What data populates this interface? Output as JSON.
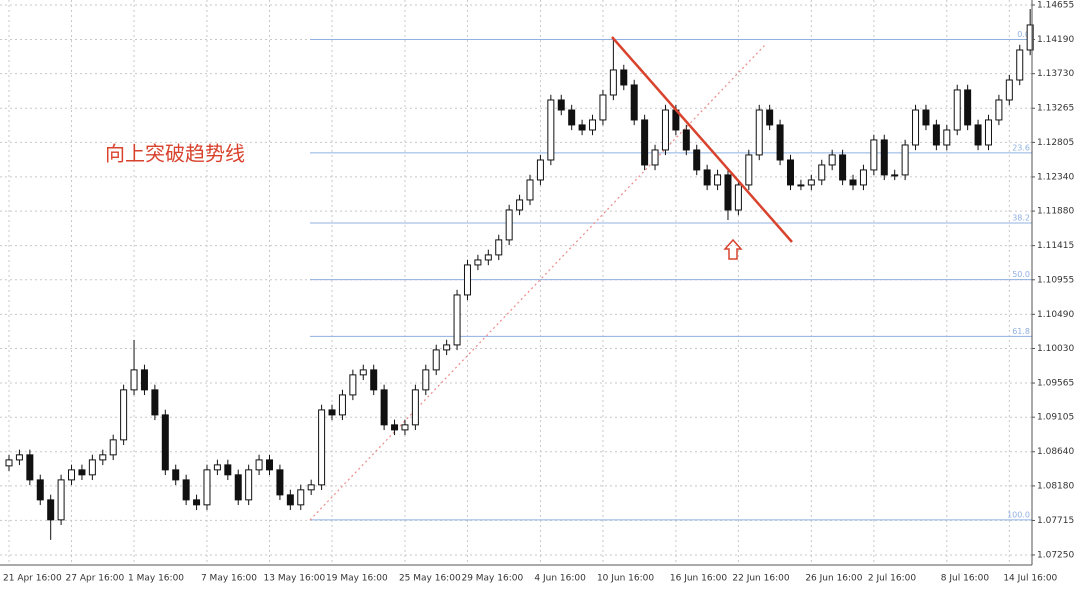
{
  "chart_data": {
    "type": "candlestick",
    "annotation": "向上突破趋势线",
    "categories": [
      "21 Apr 16:00",
      null,
      null,
      null,
      null,
      null,
      "27 Apr 16:00",
      null,
      null,
      null,
      null,
      null,
      "1 May 16:00",
      null,
      null,
      null,
      null,
      null,
      null,
      "7 May 16:00",
      null,
      null,
      null,
      null,
      null,
      "13 May 16:00",
      null,
      null,
      null,
      null,
      null,
      "19 May 16:00",
      null,
      null,
      null,
      null,
      null,
      null,
      "25 May 16:00",
      null,
      null,
      null,
      null,
      null,
      "29 May 16:00",
      null,
      null,
      null,
      null,
      null,
      null,
      "4 Jun 16:00",
      null,
      null,
      null,
      null,
      null,
      "10 Jun 16:00",
      null,
      null,
      null,
      null,
      null,
      null,
      "16 Jun 16:00",
      null,
      null,
      null,
      null,
      null,
      "22 Jun 16:00",
      null,
      null,
      null,
      null,
      null,
      null,
      "26 Jun 16:00",
      null,
      null,
      null,
      null,
      null,
      "2 Jul 16:00",
      null,
      null,
      null,
      null,
      null,
      null,
      "8 Jul 16:00",
      null,
      null,
      null,
      null,
      null,
      "14 Jul 16:00",
      null,
      null
    ],
    "open": [
      1.0845,
      1.0853,
      1.08598,
      1.08261,
      1.07992,
      1.07723,
      1.08261,
      1.08396,
      1.08329,
      1.0853,
      1.08598,
      1.088,
      1.09473,
      1.09742,
      1.09473,
      1.09136,
      1.08396,
      1.08261,
      1.07992,
      1.07925,
      1.08396,
      1.08463,
      1.08329,
      1.07992,
      1.08396,
      1.0853,
      1.08396,
      1.08059,
      1.07925,
      1.08127,
      1.08194,
      1.09203,
      1.09136,
      1.09405,
      1.09675,
      1.09742,
      1.09473,
      1.09002,
      1.08934,
      1.09002,
      1.09473,
      1.09742,
      1.10011,
      1.10078,
      1.10751,
      1.11155,
      1.11222,
      1.1129,
      1.11492,
      1.11895,
      1.1203,
      1.12299,
      1.12568,
      1.13376,
      1.13241,
      1.1304,
      1.12972,
      1.13107,
      1.13443,
      1.1378,
      1.13578,
      1.13107,
      1.12501,
      1.12703,
      1.13241,
      1.12972,
      1.12703,
      1.12434,
      1.12232,
      1.12367,
      1.11895,
      1.12232,
      1.12636,
      1.13241,
      1.1304,
      1.12568,
      1.12232,
      1.12232,
      1.12299,
      1.12501,
      1.12636,
      1.12299,
      1.12232,
      1.12434,
      1.12838,
      1.12367,
      1.12367,
      1.1277,
      1.13241,
      1.1304,
      1.1277,
      1.12972,
      1.13511,
      1.1304,
      1.1277,
      1.13107,
      1.13376,
      1.13645,
      1.14049
    ],
    "high": [
      1.086,
      1.08668,
      1.08668,
      1.08331,
      1.08062,
      1.08331,
      1.08466,
      1.08466,
      1.086,
      1.08668,
      1.0887,
      1.09543,
      1.10146,
      1.09812,
      1.09543,
      1.09206,
      1.08466,
      1.08331,
      1.08062,
      1.08466,
      1.08533,
      1.08533,
      1.08399,
      1.08466,
      1.086,
      1.086,
      1.08466,
      1.08129,
      1.08197,
      1.08264,
      1.09273,
      1.09273,
      1.09475,
      1.09745,
      1.09812,
      1.09812,
      1.09543,
      1.09072,
      1.09072,
      1.09543,
      1.09812,
      1.10081,
      1.10148,
      1.10821,
      1.11225,
      1.11292,
      1.1136,
      1.11562,
      1.11965,
      1.121,
      1.12369,
      1.12638,
      1.13446,
      1.13446,
      1.13311,
      1.1311,
      1.13177,
      1.13513,
      1.14211,
      1.1385,
      1.13648,
      1.13177,
      1.12773,
      1.13311,
      1.13311,
      1.13042,
      1.12773,
      1.12504,
      1.12437,
      1.12437,
      1.12302,
      1.12706,
      1.13311,
      1.13311,
      1.1311,
      1.12638,
      1.12302,
      1.12369,
      1.12571,
      1.12706,
      1.12706,
      1.12369,
      1.12504,
      1.12908,
      1.12908,
      1.12437,
      1.1284,
      1.13311,
      1.13311,
      1.1311,
      1.13042,
      1.13581,
      1.13581,
      1.1311,
      1.13177,
      1.13446,
      1.13715,
      1.14119,
      1.146
    ],
    "low": [
      1.0838,
      1.0846,
      1.08191,
      1.07922,
      1.07453,
      1.07653,
      1.08191,
      1.08259,
      1.08259,
      1.0846,
      1.08528,
      1.0873,
      1.09403,
      1.09403,
      1.09066,
      1.08326,
      1.08191,
      1.07922,
      1.07855,
      1.07855,
      1.08326,
      1.08259,
      1.07922,
      1.07922,
      1.08326,
      1.08326,
      1.07989,
      1.07855,
      1.07855,
      1.08057,
      1.08124,
      1.09066,
      1.09066,
      1.09335,
      1.09605,
      1.09403,
      1.08932,
      1.08864,
      1.08864,
      1.08932,
      1.09403,
      1.09672,
      1.09941,
      1.10008,
      1.10681,
      1.11085,
      1.11152,
      1.1122,
      1.11422,
      1.11825,
      1.1196,
      1.12229,
      1.12498,
      1.13171,
      1.1297,
      1.12902,
      1.12902,
      1.13037,
      1.13373,
      1.13508,
      1.13037,
      1.12431,
      1.12431,
      1.12633,
      1.12902,
      1.12633,
      1.12364,
      1.12162,
      1.12162,
      1.1176,
      1.11825,
      1.12162,
      1.12566,
      1.1297,
      1.12498,
      1.12162,
      1.12162,
      1.12162,
      1.12229,
      1.12431,
      1.12229,
      1.12162,
      1.12162,
      1.12364,
      1.12297,
      1.12297,
      1.12297,
      1.127,
      1.1297,
      1.127,
      1.127,
      1.12902,
      1.1297,
      1.127,
      1.127,
      1.13037,
      1.13306,
      1.13575,
      1.13979
    ],
    "close": [
      1.0853,
      1.08598,
      1.08261,
      1.07992,
      1.07723,
      1.08261,
      1.08396,
      1.08329,
      1.0853,
      1.08598,
      1.088,
      1.09473,
      1.09742,
      1.09473,
      1.09136,
      1.08396,
      1.08261,
      1.07992,
      1.07925,
      1.08396,
      1.08463,
      1.08329,
      1.07992,
      1.08396,
      1.0853,
      1.08396,
      1.08059,
      1.07925,
      1.08127,
      1.08194,
      1.09203,
      1.09136,
      1.09405,
      1.09675,
      1.09742,
      1.09473,
      1.09002,
      1.08934,
      1.09002,
      1.09473,
      1.09742,
      1.10011,
      1.10078,
      1.10751,
      1.11155,
      1.11222,
      1.1129,
      1.11492,
      1.11895,
      1.1203,
      1.12299,
      1.12568,
      1.13376,
      1.13241,
      1.1304,
      1.12972,
      1.13107,
      1.13443,
      1.1378,
      1.13578,
      1.13107,
      1.12501,
      1.12703,
      1.13241,
      1.12972,
      1.12703,
      1.12434,
      1.12232,
      1.12367,
      1.11895,
      1.12232,
      1.12636,
      1.13241,
      1.1304,
      1.12568,
      1.12232,
      1.12232,
      1.12299,
      1.12501,
      1.12636,
      1.12299,
      1.12232,
      1.12434,
      1.12838,
      1.12367,
      1.12367,
      1.1277,
      1.13241,
      1.1304,
      1.1277,
      1.12972,
      1.13511,
      1.1304,
      1.1277,
      1.13107,
      1.13376,
      1.13645,
      1.14049,
      1.14386
    ],
    "ylim": [
      1.07115,
      1.14722
    ],
    "yticks": [
      {
        "value": 1.14655,
        "label": "1.14655"
      },
      {
        "value": 1.1419,
        "label": "1.14190"
      },
      {
        "value": 1.1373,
        "label": "1.13730"
      },
      {
        "value": 1.13265,
        "label": "1.13265"
      },
      {
        "value": 1.12805,
        "label": "1.12805"
      },
      {
        "value": 1.1234,
        "label": "1.12340"
      },
      {
        "value": 1.1188,
        "label": "1.11880"
      },
      {
        "value": 1.11415,
        "label": "1.11415"
      },
      {
        "value": 1.10955,
        "label": "1.10955"
      },
      {
        "value": 1.1049,
        "label": "1.10490"
      },
      {
        "value": 1.1003,
        "label": "1.10030"
      },
      {
        "value": 1.09565,
        "label": "1.09565"
      },
      {
        "value": 1.09105,
        "label": "1.09105"
      },
      {
        "value": 1.0864,
        "label": "1.08640"
      },
      {
        "value": 1.0818,
        "label": "1.08180"
      },
      {
        "value": 1.07715,
        "label": "1.07715"
      },
      {
        "value": 1.0725,
        "label": "1.07250"
      }
    ],
    "fib_levels": [
      {
        "value": 1.1419,
        "label": "0.0"
      },
      {
        "value": 1.12664,
        "label": "23.6"
      },
      {
        "value": 1.1172,
        "label": "38.2"
      },
      {
        "value": 1.10957,
        "label": "50.0"
      },
      {
        "value": 1.10193,
        "label": "61.8"
      },
      {
        "value": 1.07723,
        "label": "100.0"
      }
    ],
    "grid": true,
    "up_color": "#ffffff",
    "down_color": "#111111",
    "fib_color": "#8fb0e0"
  }
}
